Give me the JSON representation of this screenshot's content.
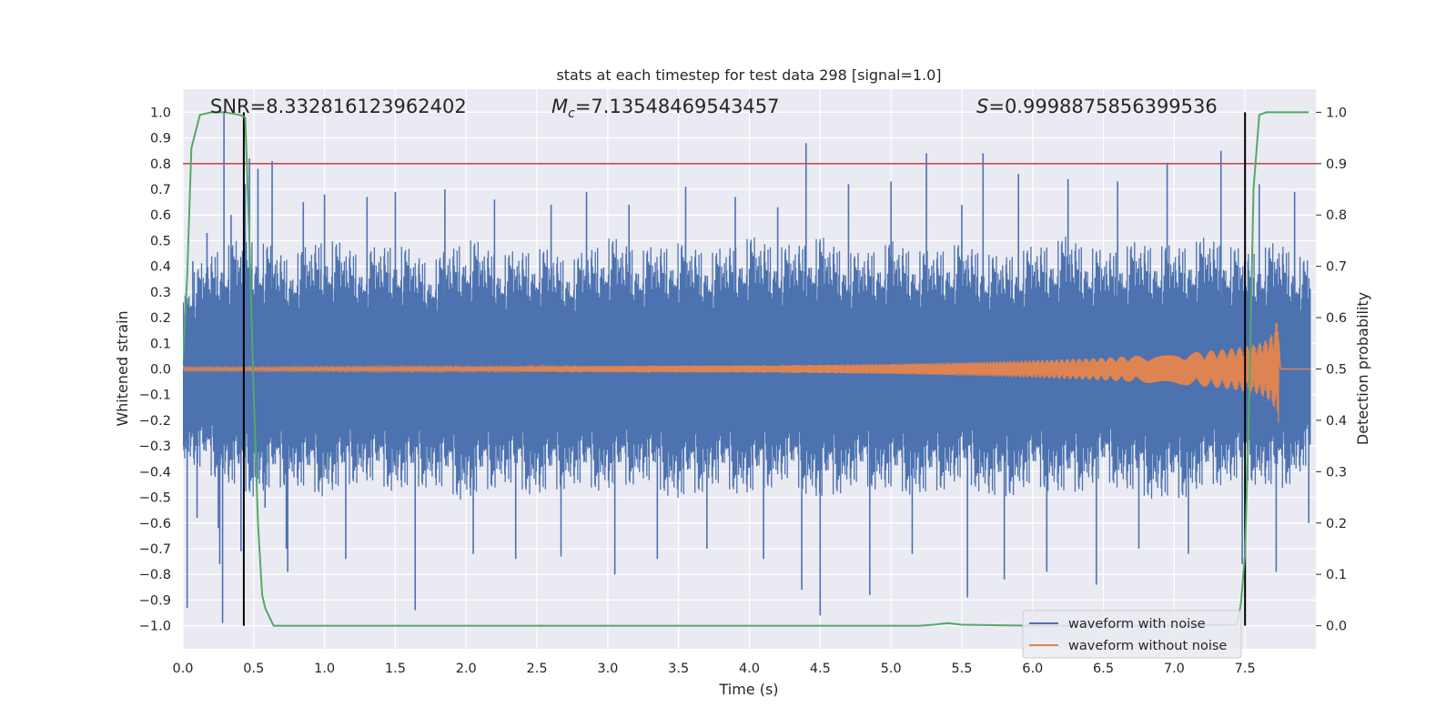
{
  "chart_data": {
    "type": "line",
    "title": "stats at each timestep for test data 298 [signal=1.0]",
    "xlabel": "Time (s)",
    "ylabel": "Whitened strain",
    "y2label": "Detection probability",
    "xlim": [
      0.0,
      8.0
    ],
    "ylim": [
      -1.09,
      1.09
    ],
    "y2lim": [
      -0.045,
      1.045
    ],
    "x_ticks": [
      0.0,
      0.5,
      1.0,
      1.5,
      2.0,
      2.5,
      3.0,
      3.5,
      4.0,
      4.5,
      5.0,
      5.5,
      6.0,
      6.5,
      7.0,
      7.5
    ],
    "x_tick_labels": [
      "0.0",
      "0.5",
      "1.0",
      "1.5",
      "2.0",
      "2.5",
      "3.0",
      "3.5",
      "4.0",
      "4.5",
      "5.0",
      "5.5",
      "6.0",
      "6.5",
      "7.0",
      "7.5"
    ],
    "y_ticks": [
      1.0,
      0.9,
      0.8,
      0.7,
      0.6,
      0.5,
      0.4,
      0.3,
      0.2,
      0.1,
      0.0,
      -0.1,
      -0.2,
      -0.3,
      -0.4,
      -0.5,
      -0.6,
      -0.7,
      -0.8,
      -0.9,
      -1.0
    ],
    "y_tick_labels": [
      "1.0",
      "0.9",
      "0.8",
      "0.7",
      "0.6",
      "0.5",
      "0.4",
      "0.3",
      "0.2",
      "0.1",
      "0.0",
      "−0.1",
      "−0.2",
      "−0.3",
      "−0.4",
      "−0.5",
      "−0.6",
      "−0.7",
      "−0.8",
      "−0.9",
      "−1.0"
    ],
    "y2_ticks": [
      1.0,
      0.9,
      0.8,
      0.7,
      0.6,
      0.5,
      0.4,
      0.3,
      0.2,
      0.1,
      0.0
    ],
    "y2_tick_labels": [
      "1.0",
      "0.9",
      "0.8",
      "0.7",
      "0.6",
      "0.5",
      "0.4",
      "0.3",
      "0.2",
      "0.1",
      "0.0"
    ],
    "threshold": 0.8,
    "vlines": [
      0.43,
      7.5
    ],
    "annotations": {
      "snr": "SNR=8.332816123962402",
      "mc_symbol": "M",
      "mc_sub": "c",
      "mc_value": "=7.13548469543457",
      "s_symbol": "S",
      "s_value": "=0.9998875856399536"
    },
    "series": [
      {
        "name": "waveform with noise",
        "color": "#4c72b0",
        "style": "dense noise band",
        "band_top_x": [
          0.0,
          0.25,
          0.5,
          0.75,
          1.0,
          1.25,
          1.5,
          1.75,
          2.0,
          2.25,
          2.5,
          2.75,
          3.0,
          3.25,
          3.5,
          3.75,
          4.0,
          4.25,
          4.5,
          4.75,
          5.0,
          5.25,
          5.5,
          5.75,
          6.0,
          6.25,
          6.5,
          6.75,
          7.0,
          7.25,
          7.5,
          7.75,
          8.0
        ],
        "band_top_y": [
          0.34,
          0.48,
          0.52,
          0.44,
          0.52,
          0.46,
          0.5,
          0.42,
          0.52,
          0.45,
          0.48,
          0.43,
          0.52,
          0.47,
          0.5,
          0.46,
          0.52,
          0.48,
          0.52,
          0.45,
          0.5,
          0.46,
          0.5,
          0.44,
          0.48,
          0.52,
          0.46,
          0.5,
          0.48,
          0.52,
          0.46,
          0.5,
          0.4
        ],
        "band_bottom_y": [
          -0.36,
          -0.44,
          -0.5,
          -0.46,
          -0.5,
          -0.44,
          -0.48,
          -0.46,
          -0.52,
          -0.45,
          -0.5,
          -0.46,
          -0.48,
          -0.44,
          -0.52,
          -0.46,
          -0.5,
          -0.44,
          -0.52,
          -0.46,
          -0.48,
          -0.5,
          -0.44,
          -0.52,
          -0.46,
          -0.5,
          -0.44,
          -0.5,
          -0.52,
          -0.46,
          -0.44,
          -0.48,
          -0.36
        ],
        "spikes": [
          {
            "x": 0.03,
            "y": -0.93
          },
          {
            "x": 0.07,
            "y": 0.42
          },
          {
            "x": 0.1,
            "y": -0.58
          },
          {
            "x": 0.17,
            "y": 0.53
          },
          {
            "x": 0.25,
            "y": -0.62
          },
          {
            "x": 0.26,
            "y": -0.76
          },
          {
            "x": 0.28,
            "y": -0.99
          },
          {
            "x": 0.29,
            "y": 1.0
          },
          {
            "x": 0.34,
            "y": 0.6
          },
          {
            "x": 0.41,
            "y": -0.71
          },
          {
            "x": 0.44,
            "y": 0.72
          },
          {
            "x": 0.47,
            "y": 0.82
          },
          {
            "x": 0.53,
            "y": 0.78
          },
          {
            "x": 0.58,
            "y": -0.54
          },
          {
            "x": 0.63,
            "y": 0.81
          },
          {
            "x": 0.73,
            "y": -0.7
          },
          {
            "x": 0.74,
            "y": -0.79
          },
          {
            "x": 0.85,
            "y": 0.65
          },
          {
            "x": 1.0,
            "y": 0.68
          },
          {
            "x": 1.15,
            "y": -0.74
          },
          {
            "x": 1.3,
            "y": 0.67
          },
          {
            "x": 1.5,
            "y": 0.69
          },
          {
            "x": 1.64,
            "y": -0.94
          },
          {
            "x": 1.85,
            "y": 0.7
          },
          {
            "x": 2.05,
            "y": -0.72
          },
          {
            "x": 2.2,
            "y": 0.66
          },
          {
            "x": 2.35,
            "y": -0.74
          },
          {
            "x": 2.6,
            "y": 0.64
          },
          {
            "x": 2.67,
            "y": -0.73
          },
          {
            "x": 2.85,
            "y": 0.69
          },
          {
            "x": 3.05,
            "y": -0.8
          },
          {
            "x": 3.15,
            "y": 0.64
          },
          {
            "x": 3.35,
            "y": -0.74
          },
          {
            "x": 3.55,
            "y": 0.71
          },
          {
            "x": 3.7,
            "y": -0.7
          },
          {
            "x": 3.9,
            "y": 0.67
          },
          {
            "x": 4.1,
            "y": -0.74
          },
          {
            "x": 4.2,
            "y": 0.63
          },
          {
            "x": 4.37,
            "y": -0.86
          },
          {
            "x": 4.4,
            "y": 0.88
          },
          {
            "x": 4.5,
            "y": -0.96
          },
          {
            "x": 4.7,
            "y": 0.72
          },
          {
            "x": 4.85,
            "y": -0.88
          },
          {
            "x": 5.0,
            "y": 0.73
          },
          {
            "x": 5.15,
            "y": -0.72
          },
          {
            "x": 5.25,
            "y": 0.84
          },
          {
            "x": 5.5,
            "y": 0.64
          },
          {
            "x": 5.54,
            "y": -0.89
          },
          {
            "x": 5.65,
            "y": 0.84
          },
          {
            "x": 5.8,
            "y": -0.82
          },
          {
            "x": 5.9,
            "y": 0.76
          },
          {
            "x": 6.1,
            "y": -0.79
          },
          {
            "x": 6.25,
            "y": 0.74
          },
          {
            "x": 6.45,
            "y": -0.84
          },
          {
            "x": 6.6,
            "y": 0.73
          },
          {
            "x": 6.75,
            "y": -0.7
          },
          {
            "x": 6.95,
            "y": 0.8
          },
          {
            "x": 7.1,
            "y": -0.72
          },
          {
            "x": 7.33,
            "y": 0.85
          },
          {
            "x": 7.48,
            "y": -0.76
          },
          {
            "x": 7.6,
            "y": 0.72
          },
          {
            "x": 7.72,
            "y": -0.79
          },
          {
            "x": 7.85,
            "y": 0.69
          },
          {
            "x": 7.95,
            "y": -0.6
          }
        ]
      },
      {
        "name": "waveform without noise",
        "color": "#dd8452",
        "style": "chirp",
        "envelope_x": [
          0.0,
          1.0,
          2.0,
          3.0,
          4.0,
          4.5,
          5.0,
          5.5,
          6.0,
          6.5,
          7.0,
          7.2,
          7.4,
          7.5,
          7.6,
          7.65,
          7.7,
          7.73,
          7.74,
          7.75
        ],
        "envelope_y": [
          0.008,
          0.009,
          0.01,
          0.012,
          0.014,
          0.016,
          0.02,
          0.026,
          0.034,
          0.044,
          0.06,
          0.068,
          0.08,
          0.088,
          0.1,
          0.115,
          0.145,
          0.2,
          0.22,
          0.0
        ]
      },
      {
        "name": "detection probability",
        "color": "#55a868",
        "axis": "right",
        "x": [
          0.0,
          0.03,
          0.06,
          0.12,
          0.2,
          0.3,
          0.4,
          0.44,
          0.47,
          0.5,
          0.53,
          0.56,
          0.58,
          0.64,
          1.0,
          2.0,
          3.0,
          4.0,
          5.0,
          5.2,
          5.3,
          5.4,
          5.5,
          6.0,
          7.0,
          7.44,
          7.47,
          7.5,
          7.53,
          7.56,
          7.6,
          7.65,
          7.8,
          7.95
        ],
        "y": [
          0.52,
          0.68,
          0.93,
          0.995,
          1.0,
          1.0,
          0.995,
          0.99,
          0.75,
          0.45,
          0.2,
          0.06,
          0.035,
          0.0,
          0.0,
          0.0,
          0.0,
          0.0,
          0.0,
          0.0,
          0.002,
          0.005,
          0.002,
          0.0,
          0.0,
          0.002,
          0.04,
          0.14,
          0.45,
          0.85,
          0.995,
          1.0,
          1.0,
          1.0
        ]
      }
    ],
    "legend": {
      "position": "lower-right",
      "entries": [
        {
          "label": "waveform with noise",
          "color": "#4c72b0"
        },
        {
          "label": "waveform without noise",
          "color": "#dd8452"
        }
      ]
    },
    "grid": true,
    "threshold_color": "#c44e52",
    "vline_color": "#000000",
    "plot_background": "#eaeaf2"
  }
}
